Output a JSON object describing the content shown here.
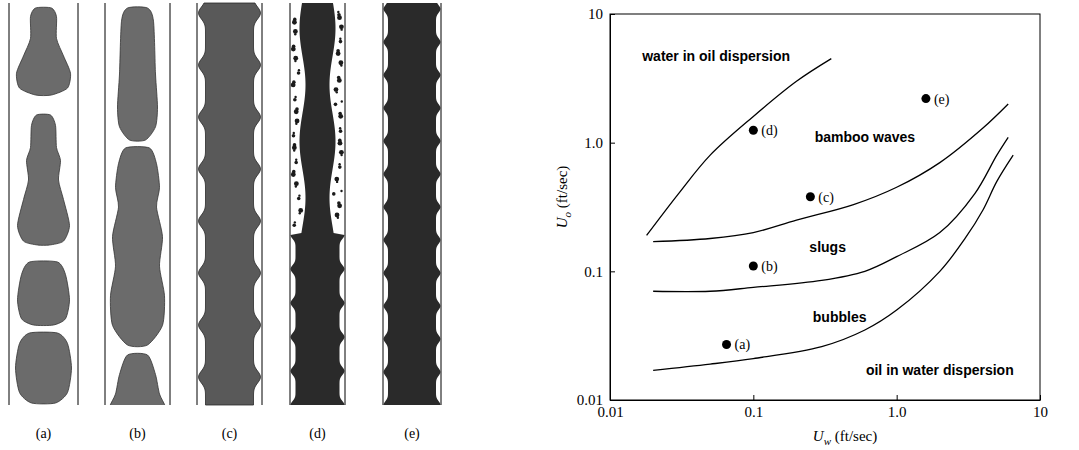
{
  "illustrations": {
    "labels": [
      "(a)",
      "(b)",
      "(c)",
      "(d)",
      "(e)"
    ]
  },
  "chart_data": {
    "type": "line",
    "x_label": "Uw (ft/sec)",
    "y_label": "Uo (ft/sec)",
    "log": true,
    "xlim": [
      0.01,
      10
    ],
    "ylim": [
      0.01,
      10
    ],
    "xticks": [
      0.01,
      0.1,
      {
        "value": 1,
        "label": "1.0"
      },
      10
    ],
    "yticks": [
      0.01,
      0.1,
      {
        "value": 1,
        "label": "1.0"
      },
      10
    ],
    "series": [
      {
        "type": "line",
        "color": "#000000",
        "x": [
          0.018,
          0.03,
          0.05,
          0.1,
          0.2,
          0.35
        ],
        "values": [
          0.19,
          0.4,
          0.8,
          1.6,
          3.0,
          4.5
        ]
      },
      {
        "type": "line",
        "color": "#000000",
        "x": [
          0.02,
          0.05,
          0.1,
          0.2,
          0.5,
          1,
          2,
          4,
          6
        ],
        "values": [
          0.17,
          0.18,
          0.2,
          0.25,
          0.33,
          0.45,
          0.7,
          1.3,
          2.0
        ]
      },
      {
        "type": "line",
        "color": "#000000",
        "x": [
          0.02,
          0.05,
          0.1,
          0.3,
          0.6,
          1,
          2,
          3.5,
          5,
          6
        ],
        "values": [
          0.07,
          0.07,
          0.075,
          0.085,
          0.1,
          0.13,
          0.2,
          0.4,
          0.8,
          1.1
        ]
      },
      {
        "type": "line",
        "color": "#000000",
        "x": [
          0.02,
          0.05,
          0.1,
          0.3,
          0.6,
          1,
          2,
          3,
          4,
          5,
          6.5
        ],
        "values": [
          0.017,
          0.019,
          0.021,
          0.026,
          0.035,
          0.05,
          0.1,
          0.18,
          0.3,
          0.5,
          0.8
        ]
      },
      {
        "type": "scatter",
        "marker": "circle",
        "color": "#000000",
        "x": [
          0.065,
          0.1,
          0.25,
          0.1,
          1.6
        ],
        "values": [
          0.027,
          0.11,
          0.38,
          1.25,
          2.2
        ],
        "labels": [
          "(a)",
          "(b)",
          "(c)",
          "(d)",
          "(e)"
        ]
      }
    ],
    "annotations": [
      {
        "text": "water in oil dispersion",
        "x": 0.055,
        "y": 4.7
      },
      {
        "text": "bamboo waves",
        "x": 0.6,
        "y": 1.1
      },
      {
        "text": "slugs",
        "x": 0.33,
        "y": 0.155
      },
      {
        "text": "bubbles",
        "x": 0.4,
        "y": 0.044
      },
      {
        "text": "oil in water dispersion",
        "x": 2.0,
        "y": 0.017
      }
    ]
  }
}
